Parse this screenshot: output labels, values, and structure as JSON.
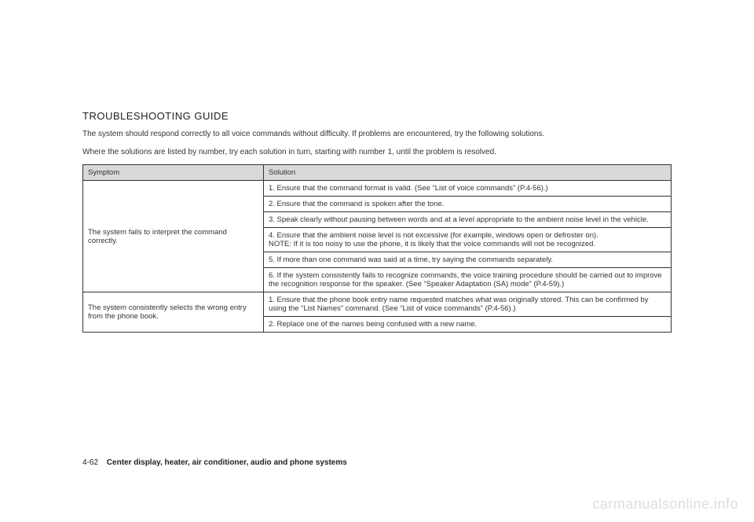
{
  "title": "TROUBLESHOOTING GUIDE",
  "intro1": "The system should respond correctly to all voice commands without difficulty. If problems are encountered, try the following solutions.",
  "intro2": "Where the solutions are listed by number, try each solution in turn, starting with number 1, until the problem is resolved.",
  "table": {
    "headers": {
      "symptom": "Symptom",
      "solution": "Solution"
    },
    "symptom1": "The system fails to interpret the command correctly.",
    "symptom2": "The system consistently selects the wrong entry from the phone book.",
    "rows": {
      "s1r1": "1. Ensure that the command format is valid. (See “List of voice commands” (P.4-56).)",
      "s1r2": "2. Ensure that the command is spoken after the tone.",
      "s1r3": "3. Speak clearly without pausing between words and at a level appropriate to the ambient noise level in the vehicle.",
      "s1r4": "4. Ensure that the ambient noise level is not excessive (for example, windows open or defroster on).\nNOTE: If it is too noisy to use the phone, it is likely that the voice commands will not be recognized.",
      "s1r5": "5. If more than one command was said at a time, try saying the commands separately.",
      "s1r6": "6. If the system consistently fails to recognize commands, the voice training procedure should be carried out to improve the recognition response for the speaker. (See “Speaker Adaptation (SA) mode” (P.4-59).)",
      "s2r1": "1. Ensure that the phone book entry name requested matches what was originally stored. This can be confirmed by using the “List Names” command. (See “List of voice commands” (P.4-56).)",
      "s2r2": "2. Replace one of the names being confused with a new name."
    }
  },
  "footer": {
    "pageNum": "4-62",
    "section": "Center display, heater, air conditioner, audio and phone systems"
  },
  "watermark": "carmanualsonline.info",
  "colors": {
    "headerBg": "#d9d9d9",
    "border": "#333333",
    "text": "#333333",
    "watermark": "#dddddd"
  }
}
